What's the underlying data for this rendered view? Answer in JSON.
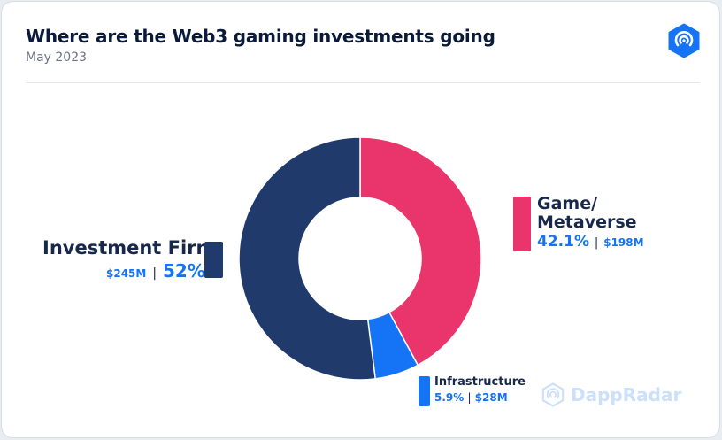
{
  "header": {
    "title": "Where are the Web3 gaming investments going",
    "subtitle": "May 2023"
  },
  "brand": {
    "logo_icon": "dappradar-logo-icon",
    "watermark_text": "DappRadar"
  },
  "colors": {
    "game_metaverse": "#e9356c",
    "infrastructure": "#1574f5",
    "investment_firm": "#1f3a6b",
    "accent": "#1574f5"
  },
  "chart_data": {
    "type": "pie",
    "variant": "donut",
    "start_angle_deg": 0,
    "direction": "clockwise",
    "slices": [
      {
        "label": "Game/\nMetaverse",
        "label_line1": "Game/",
        "label_line2": "Metaverse",
        "percent": 42.1,
        "percent_label": "42.1%",
        "amount_label": "$198M",
        "color": "#e9356c"
      },
      {
        "label": "Infrastructure",
        "percent": 5.9,
        "percent_label": "5.9%",
        "amount_label": "$28M",
        "color": "#1574f5"
      },
      {
        "label": "Investment Firm",
        "percent": 52,
        "percent_label": "52%",
        "amount_label": "$245M",
        "color": "#1f3a6b"
      }
    ]
  }
}
